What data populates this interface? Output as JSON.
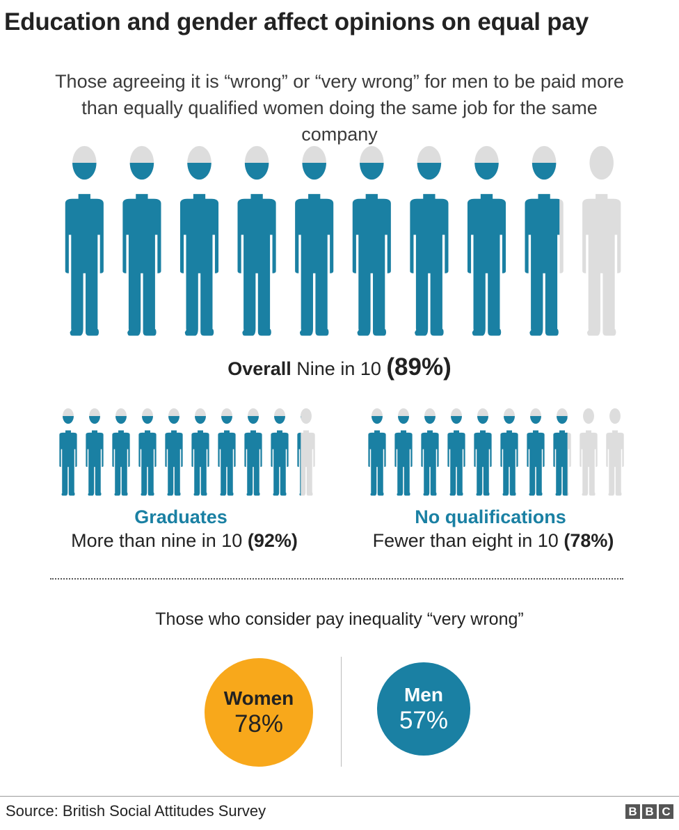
{
  "header": {
    "title": "Education and gender affect opinions on equal pay",
    "subtitle": "Those agreeing it is “wrong” or “very wrong” for men to be paid more than equally qualified women doing the same job for the same company"
  },
  "overall": {
    "label": "Overall",
    "text": "Nine in 10",
    "value_label": "(89%)"
  },
  "groups": {
    "graduates": {
      "title": "Graduates",
      "text": "More than nine in 10",
      "value_label": "(92%)"
    },
    "no_qualifications": {
      "title": "No qualifications",
      "text": "Fewer than eight in 10",
      "value_label": "(78%)"
    }
  },
  "very_wrong": {
    "heading": "Those who consider pay inequality “very wrong”",
    "women": {
      "label": "Women",
      "value_label": "78%"
    },
    "men": {
      "label": "Men",
      "value_label": "57%"
    }
  },
  "footer": {
    "source": "Source: British Social Attitudes Survey",
    "logo_letters": [
      "B",
      "B",
      "C"
    ]
  },
  "colors": {
    "filled": "#1a80a3",
    "empty": "#dddddd",
    "women_circle": "#f8a81b",
    "men_circle": "#1a80a3"
  },
  "chart_data": [
    {
      "type": "bar",
      "categories": [
        "Overall",
        "Graduates",
        "No qualifications"
      ],
      "values": [
        89,
        92,
        78
      ],
      "ylim": [
        0,
        100
      ]
    },
    {
      "type": "bar",
      "categories": [
        "Women",
        "Men"
      ],
      "values": [
        78,
        57
      ],
      "ylim": [
        0,
        100
      ]
    }
  ]
}
